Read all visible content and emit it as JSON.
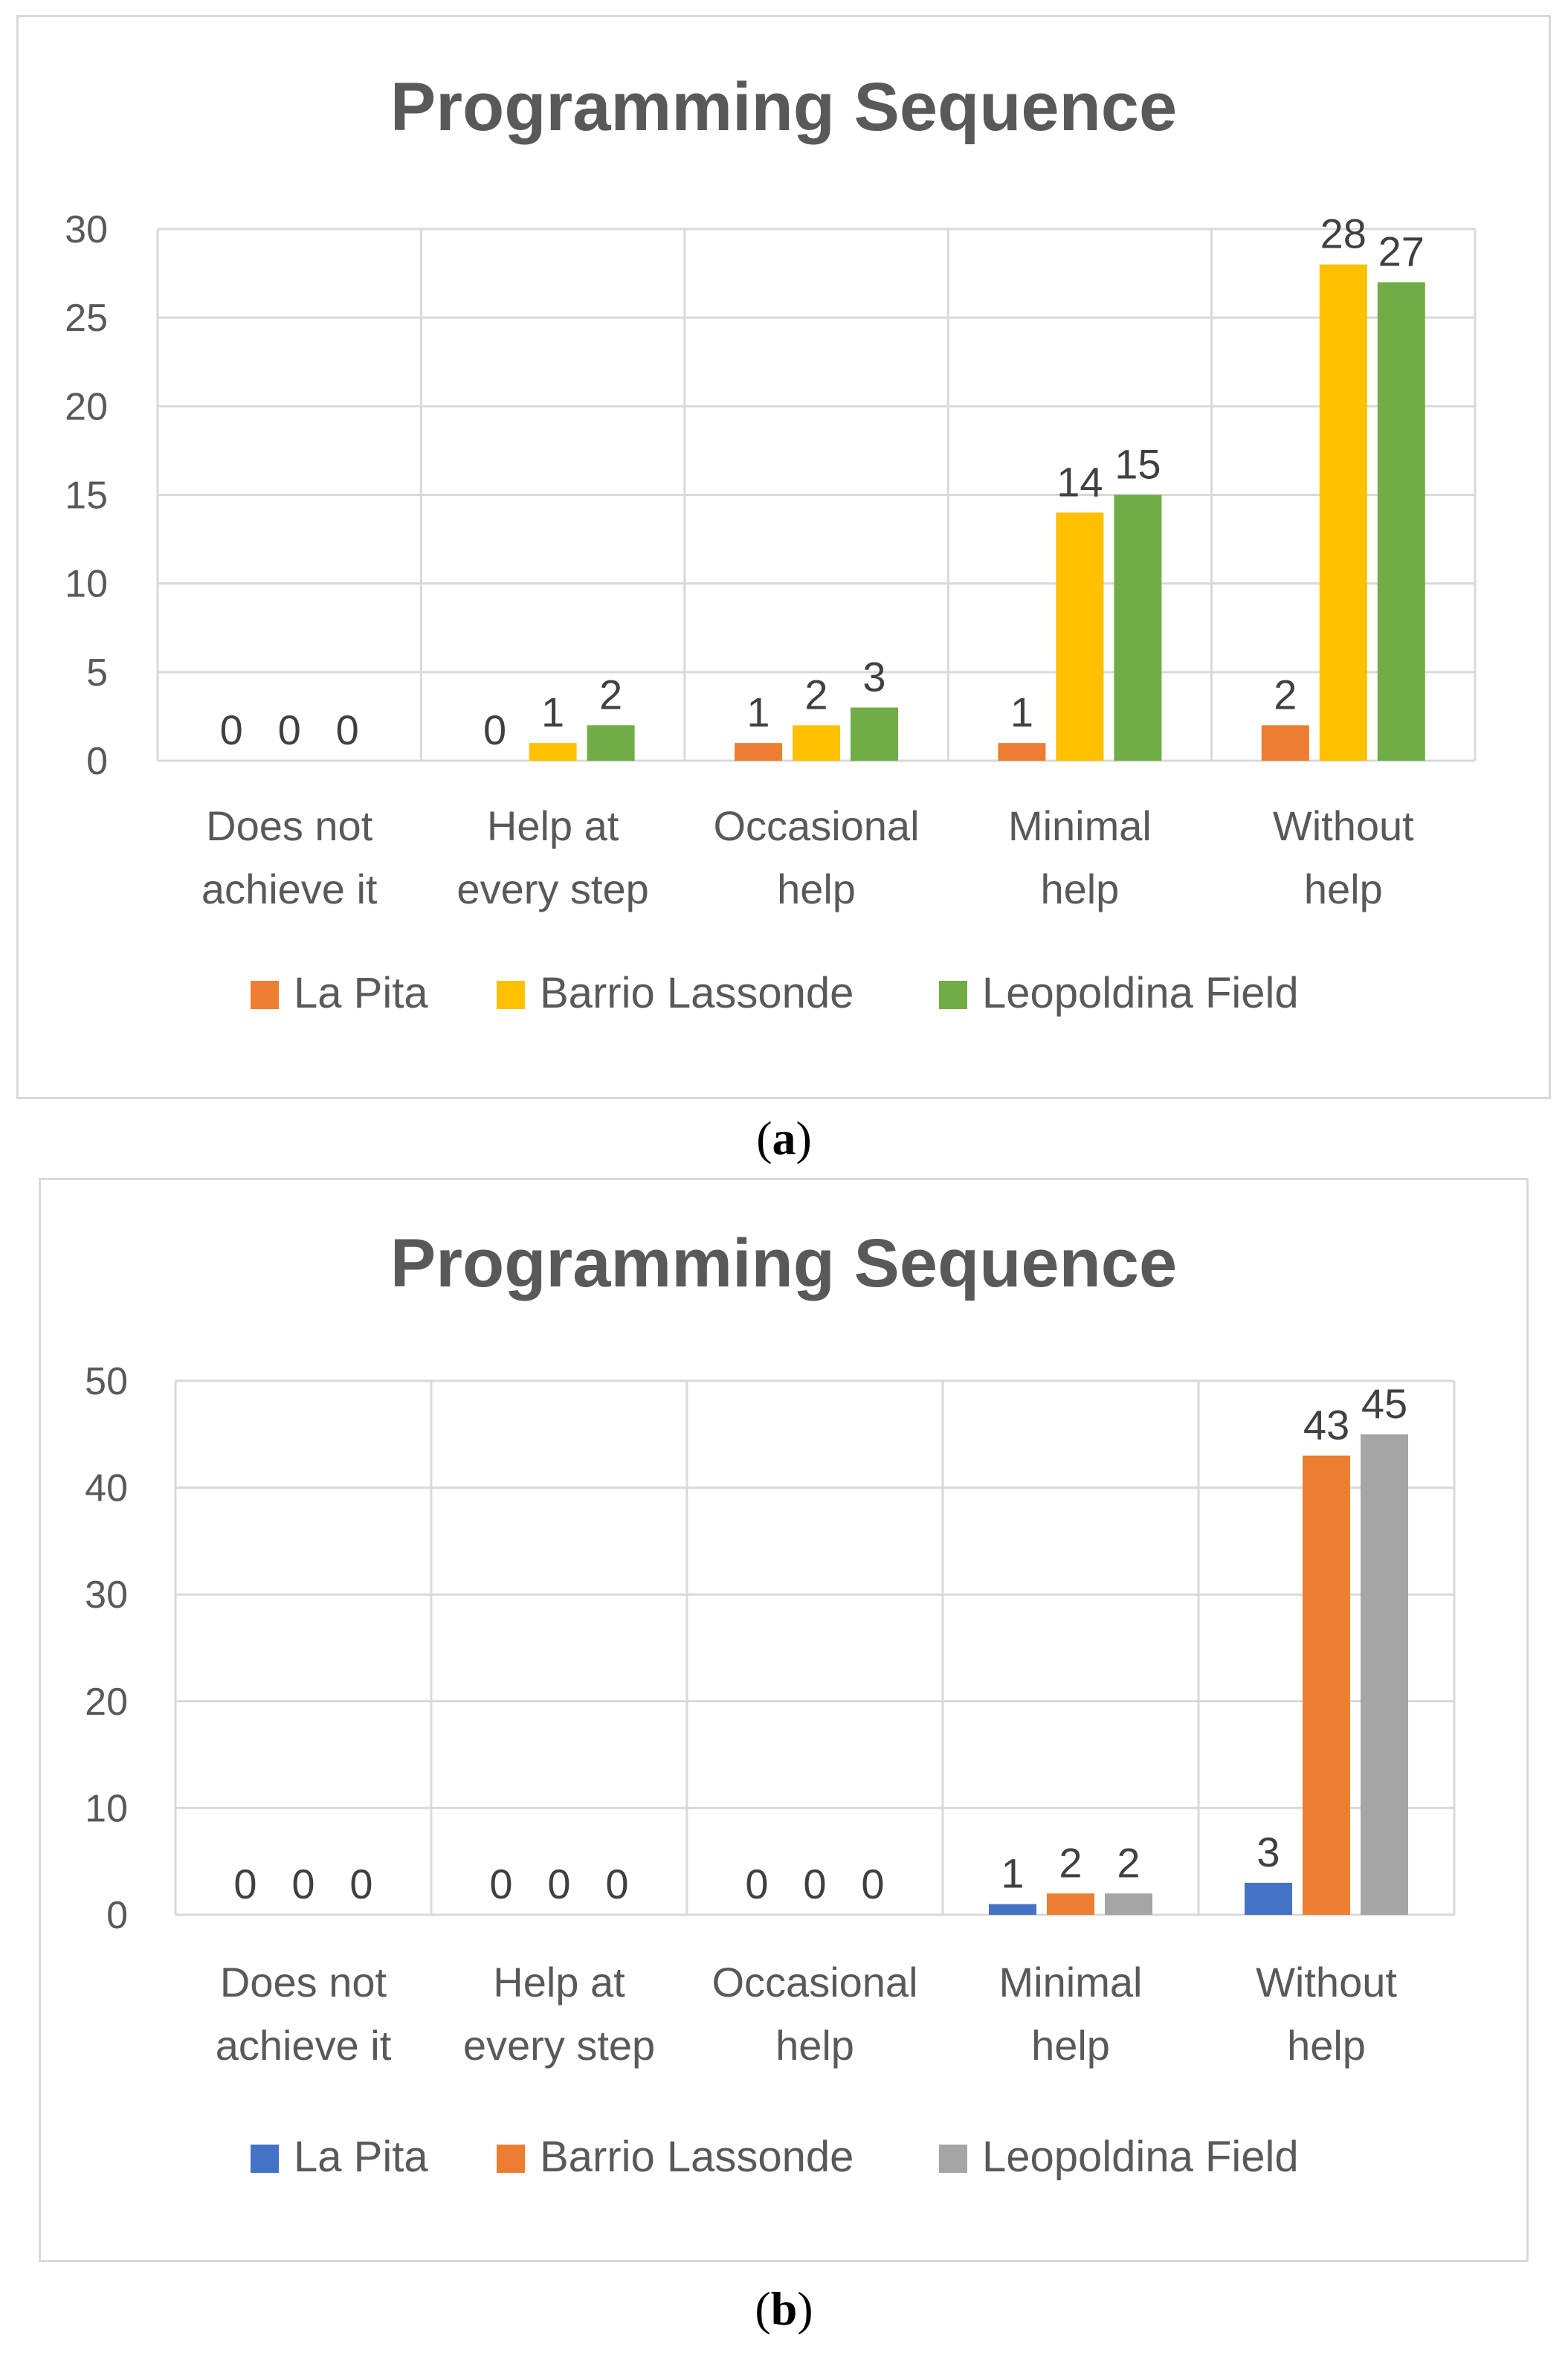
{
  "chart_data": [
    {
      "type": "bar",
      "panel": "a",
      "title": "Programming Sequence",
      "categories": [
        [
          "Does not",
          "achieve it"
        ],
        [
          "Help at",
          "every step"
        ],
        [
          "Occasional",
          "help"
        ],
        [
          "Minimal",
          "help"
        ],
        [
          "Without",
          "help"
        ]
      ],
      "series": [
        {
          "name": "La Pita",
          "color": "#ed7d31",
          "values": [
            0,
            0,
            1,
            1,
            2
          ]
        },
        {
          "name": "Barrio Lassonde",
          "color": "#ffc000",
          "values": [
            0,
            1,
            2,
            14,
            28
          ]
        },
        {
          "name": "Leopoldina Field",
          "color": "#70ad47",
          "values": [
            0,
            2,
            3,
            15,
            27
          ]
        }
      ],
      "ylim": [
        0,
        30
      ],
      "yticks": [
        0,
        5,
        10,
        15,
        20,
        25,
        30
      ],
      "xlabel": "",
      "ylabel": "",
      "grid": true,
      "legend": "bottom"
    },
    {
      "type": "bar",
      "panel": "b",
      "title": "Programming Sequence",
      "categories": [
        [
          "Does not",
          "achieve it"
        ],
        [
          "Help at",
          "every step"
        ],
        [
          "Occasional",
          "help"
        ],
        [
          "Minimal",
          "help"
        ],
        [
          "Without",
          "help"
        ]
      ],
      "series": [
        {
          "name": "La Pita",
          "color": "#4472c4",
          "values": [
            0,
            0,
            0,
            1,
            3
          ]
        },
        {
          "name": "Barrio Lassonde",
          "color": "#ed7d31",
          "values": [
            0,
            0,
            0,
            2,
            43
          ]
        },
        {
          "name": "Leopoldina Field",
          "color": "#a5a5a5",
          "values": [
            0,
            0,
            0,
            2,
            45
          ]
        }
      ],
      "ylim": [
        0,
        50
      ],
      "yticks": [
        0,
        10,
        20,
        30,
        40,
        50
      ],
      "xlabel": "",
      "ylabel": "",
      "grid": true,
      "legend": "bottom"
    }
  ],
  "captions": {
    "a": "a",
    "b": "b"
  }
}
